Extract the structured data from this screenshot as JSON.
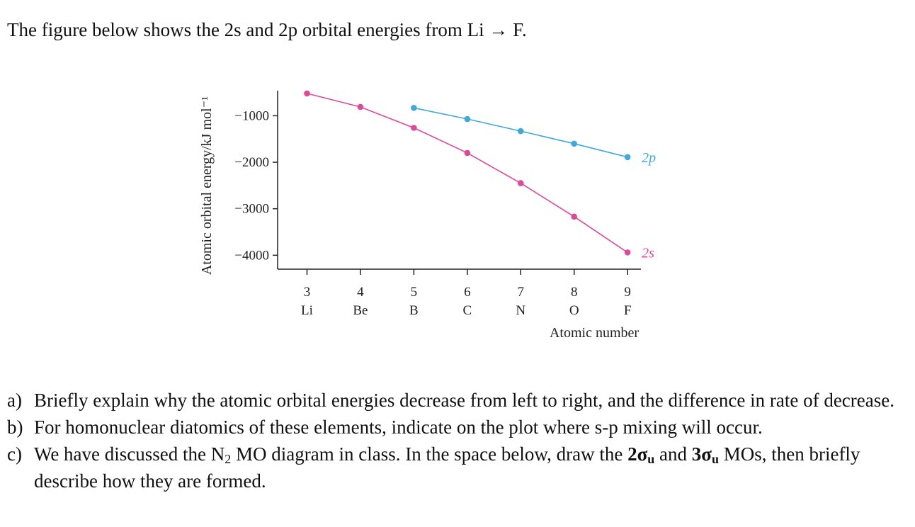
{
  "intro": {
    "text": "The figure below shows the 2s and 2p orbital energies from Li → F."
  },
  "chart_data": {
    "type": "line",
    "title": "",
    "xlabel": "Atomic number",
    "ylabel": "Atomic orbital energy/kJ mol⁻¹",
    "x": [
      3,
      4,
      5,
      6,
      7,
      8,
      9
    ],
    "x_tick_labels": [
      "3",
      "4",
      "5",
      "6",
      "7",
      "8",
      "9"
    ],
    "x_element_labels": [
      "Li",
      "Be",
      "B",
      "C",
      "N",
      "O",
      "F"
    ],
    "xlim": [
      2.45,
      9.25
    ],
    "ylim": [
      -4300,
      -460
    ],
    "y_ticks": [
      -1000,
      -2000,
      -3000,
      -4000
    ],
    "y_tick_labels": [
      "−1000",
      "−2000",
      "−3000",
      "−4000"
    ],
    "grid": false,
    "legend": "inline labels at right end of each series",
    "series": [
      {
        "name": "2s",
        "color": "#e0489a",
        "x": [
          3,
          4,
          5,
          6,
          7,
          8,
          9
        ],
        "values": [
          -520,
          -810,
          -1260,
          -1800,
          -2450,
          -3170,
          -3940
        ]
      },
      {
        "name": "2p",
        "color": "#3fa9dc",
        "x": [
          5,
          6,
          7,
          8,
          9
        ],
        "values": [
          -830,
          -1070,
          -1330,
          -1600,
          -1890
        ]
      }
    ]
  },
  "questions": {
    "a": {
      "label": "a)",
      "text": "Briefly explain why the atomic orbital energies decrease from left to right, and the difference in rate of decrease."
    },
    "b": {
      "label": "b)",
      "text": "For homonuclear diatomics of these elements, indicate on the plot where s-p mixing will occur."
    },
    "c": {
      "label": "c)",
      "t1": "We have discussed the N",
      "s1": "2",
      "t2": " MO diagram in class. In the space below, draw the ",
      "mo1": "2σ",
      "mo1sub": "u",
      "t3": " and ",
      "mo2": "3σ",
      "mo2sub": "u",
      "t4": " MOs, then briefly describe how they are formed."
    }
  }
}
